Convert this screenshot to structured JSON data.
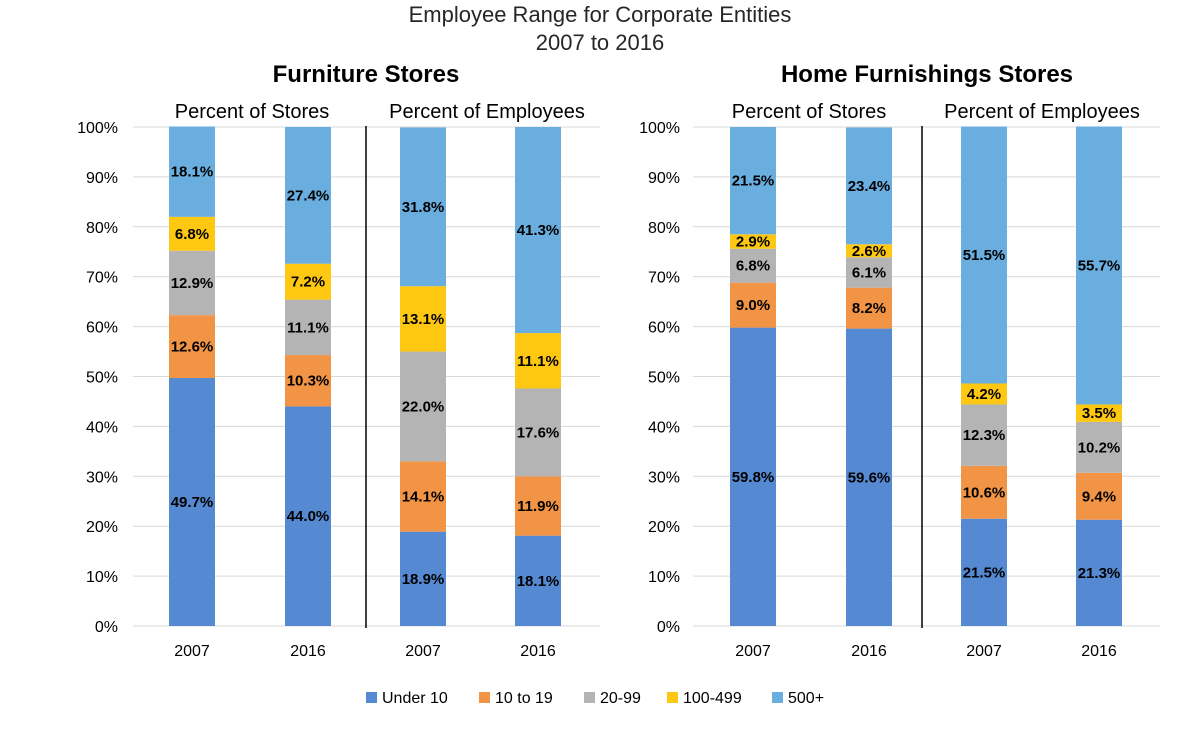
{
  "chart_data": {
    "type": "bar",
    "stacked": true,
    "percent_stacked": true,
    "title": "Employee Range for Corporate Entities",
    "subtitle": "2007 to 2016",
    "y_ticks": [
      "100%",
      "90%",
      "80%",
      "70%",
      "60%",
      "50%",
      "40%",
      "30%",
      "20%",
      "10%",
      "0%"
    ],
    "ylim": [
      0,
      100
    ],
    "grid": true,
    "legend_position": "bottom",
    "series_names": [
      "Under 10",
      "10 to 19",
      "20-99",
      "100-499",
      "500+"
    ],
    "colors": [
      "#5589d2",
      "#f29446",
      "#b4b4b4",
      "#fec711",
      "#6aaee0"
    ],
    "panels": [
      {
        "title": "Furniture Stores",
        "groups": [
          {
            "label": "Percent of Stores",
            "categories": [
              "2007",
              "2016"
            ],
            "series": [
              {
                "name": "Under 10",
                "values": [
                  49.7,
                  44.0
                ],
                "labels": [
                  "49.7%",
                  "44.0%"
                ]
              },
              {
                "name": "10 to 19",
                "values": [
                  12.6,
                  10.3
                ],
                "labels": [
                  "12.6%",
                  "10.3%"
                ]
              },
              {
                "name": "20-99",
                "values": [
                  12.9,
                  11.1
                ],
                "labels": [
                  "12.9%",
                  "11.1%"
                ]
              },
              {
                "name": "100-499",
                "values": [
                  6.8,
                  7.2
                ],
                "labels": [
                  "6.8%",
                  "7.2%"
                ]
              },
              {
                "name": "500+",
                "values": [
                  18.1,
                  27.4
                ],
                "labels": [
                  "18.1%",
                  "27.4%"
                ]
              }
            ]
          },
          {
            "label": "Percent of Employees",
            "categories": [
              "2007",
              "2016"
            ],
            "series": [
              {
                "name": "Under 10",
                "values": [
                  18.9,
                  18.1
                ],
                "labels": [
                  "18.9%",
                  "18.1%"
                ]
              },
              {
                "name": "10 to 19",
                "values": [
                  14.1,
                  11.9
                ],
                "labels": [
                  "14.1%",
                  "11.9%"
                ]
              },
              {
                "name": "20-99",
                "values": [
                  22.0,
                  17.6
                ],
                "labels": [
                  "22.0%",
                  "17.6%"
                ]
              },
              {
                "name": "100-499",
                "values": [
                  13.1,
                  11.1
                ],
                "labels": [
                  "13.1%",
                  "11.1%"
                ]
              },
              {
                "name": "500+",
                "values": [
                  31.8,
                  41.3
                ],
                "labels": [
                  "31.8%",
                  "41.3%"
                ]
              }
            ]
          }
        ]
      },
      {
        "title": "Home Furnishings Stores",
        "groups": [
          {
            "label": "Percent of Stores",
            "categories": [
              "2007",
              "2016"
            ],
            "series": [
              {
                "name": "Under 10",
                "values": [
                  59.8,
                  59.6
                ],
                "labels": [
                  "59.8%",
                  "59.6%"
                ]
              },
              {
                "name": "10 to 19",
                "values": [
                  9.0,
                  8.2
                ],
                "labels": [
                  "9.0%",
                  "8.2%"
                ]
              },
              {
                "name": "20-99",
                "values": [
                  6.8,
                  6.1
                ],
                "labels": [
                  "6.8%",
                  "6.1%"
                ]
              },
              {
                "name": "100-499",
                "values": [
                  2.9,
                  2.6
                ],
                "labels": [
                  "2.9%",
                  "2.6%"
                ]
              },
              {
                "name": "500+",
                "values": [
                  21.5,
                  23.4
                ],
                "labels": [
                  "21.5%",
                  "23.4%"
                ]
              }
            ]
          },
          {
            "label": "Percent of Employees",
            "categories": [
              "2007",
              "2016"
            ],
            "series": [
              {
                "name": "Under 10",
                "values": [
                  21.5,
                  21.3
                ],
                "labels": [
                  "21.5%",
                  "21.3%"
                ]
              },
              {
                "name": "10 to 19",
                "values": [
                  10.6,
                  9.4
                ],
                "labels": [
                  "10.6%",
                  "9.4%"
                ]
              },
              {
                "name": "20-99",
                "values": [
                  12.3,
                  10.2
                ],
                "labels": [
                  "12.3%",
                  "10.2%"
                ]
              },
              {
                "name": "100-499",
                "values": [
                  4.2,
                  3.5
                ],
                "labels": [
                  "4.2%",
                  "3.5%"
                ]
              },
              {
                "name": "500+",
                "values": [
                  51.5,
                  55.7
                ],
                "labels": [
                  "51.5%",
                  "55.7%"
                ]
              }
            ]
          }
        ]
      }
    ]
  }
}
